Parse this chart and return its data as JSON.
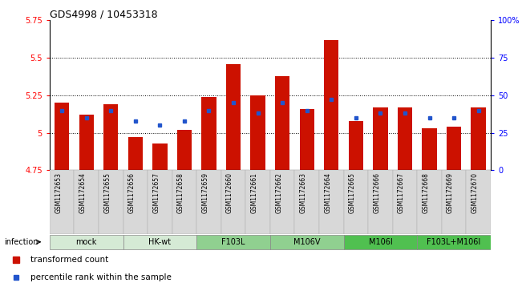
{
  "title": "GDS4998 / 10453318",
  "samples": [
    "GSM1172653",
    "GSM1172654",
    "GSM1172655",
    "GSM1172656",
    "GSM1172657",
    "GSM1172658",
    "GSM1172659",
    "GSM1172660",
    "GSM1172661",
    "GSM1172662",
    "GSM1172663",
    "GSM1172664",
    "GSM1172665",
    "GSM1172666",
    "GSM1172667",
    "GSM1172668",
    "GSM1172669",
    "GSM1172670"
  ],
  "red_values": [
    5.2,
    5.12,
    5.19,
    4.97,
    4.93,
    5.02,
    5.24,
    5.46,
    5.25,
    5.38,
    5.16,
    5.62,
    5.08,
    5.17,
    5.17,
    5.03,
    5.04,
    5.17
  ],
  "blue_values": [
    40,
    35,
    40,
    33,
    30,
    33,
    40,
    45,
    38,
    45,
    40,
    47,
    35,
    38,
    38,
    35,
    35,
    40
  ],
  "groups": [
    {
      "label": "mock",
      "start": 0,
      "end": 2,
      "color": "#d5ead5"
    },
    {
      "label": "HK-wt",
      "start": 3,
      "end": 5,
      "color": "#d5ead5"
    },
    {
      "label": "F103L",
      "start": 6,
      "end": 8,
      "color": "#90d090"
    },
    {
      "label": "M106V",
      "start": 9,
      "end": 11,
      "color": "#90d090"
    },
    {
      "label": "M106I",
      "start": 12,
      "end": 14,
      "color": "#50c050"
    },
    {
      "label": "F103L+M106I",
      "start": 15,
      "end": 17,
      "color": "#50c050"
    }
  ],
  "ymin": 4.75,
  "ymax": 5.75,
  "ytick_vals": [
    4.75,
    5.0,
    5.25,
    5.5,
    5.75
  ],
  "ytick_labels": [
    "4.75",
    "5",
    "5.25",
    "5.5",
    "5.75"
  ],
  "right_ytick_vals": [
    0,
    25,
    50,
    75,
    100
  ],
  "right_ytick_labels": [
    "0",
    "25",
    "50",
    "75",
    "100%"
  ],
  "bar_color": "#cc1100",
  "blue_color": "#2255cc",
  "legend_red": "transformed count",
  "legend_blue": "percentile rank within the sample",
  "infection_label": "infection",
  "grid_lines": [
    5.0,
    5.25,
    5.5
  ],
  "bar_width": 0.6
}
